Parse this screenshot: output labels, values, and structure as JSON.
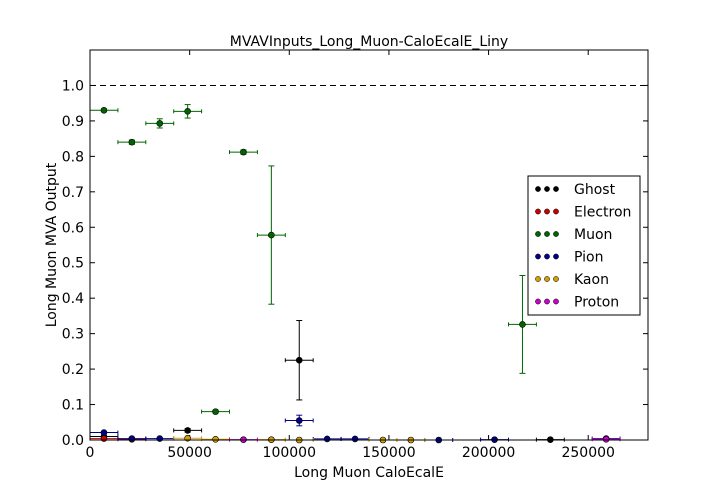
{
  "chart_data": {
    "type": "scatter",
    "title": "MVAVInputs_Long_Muon-CaloEcalE_Liny",
    "xlabel": "Long Muon CaloEcalE",
    "ylabel": "Long Muon MVA Output",
    "xlim": [
      0,
      280000
    ],
    "ylim": [
      0,
      1.1
    ],
    "x_ticks": [
      0,
      50000,
      100000,
      150000,
      200000,
      250000
    ],
    "x_tick_labels": [
      "0",
      "50000",
      "100000",
      "150000",
      "200000",
      "250000"
    ],
    "y_ticks": [
      0.0,
      0.1,
      0.2,
      0.3,
      0.4,
      0.5,
      0.6,
      0.7,
      0.8,
      0.9,
      1.0
    ],
    "y_tick_labels": [
      "0.0",
      "0.1",
      "0.2",
      "0.3",
      "0.4",
      "0.5",
      "0.6",
      "0.7",
      "0.8",
      "0.9",
      "1.0"
    ],
    "reference_line": 1.0,
    "grid": false,
    "legend_position": "right",
    "bin_half_width": 7000,
    "series": [
      {
        "name": "Ghost",
        "color": "#000000",
        "points": [
          {
            "x": 7000,
            "y": 0.01,
            "err": 0.002
          },
          {
            "x": 49000,
            "y": 0.027,
            "err": 0.005
          },
          {
            "x": 105000,
            "y": 0.225,
            "err": 0.112
          },
          {
            "x": 231000,
            "y": 0.001,
            "err": 0.001
          }
        ]
      },
      {
        "name": "Electron",
        "color": "#cc0000",
        "points": [
          {
            "x": 7000,
            "y": 0.004,
            "err": 0.001
          },
          {
            "x": 21000,
            "y": 0.002,
            "err": 0.001
          }
        ]
      },
      {
        "name": "Muon",
        "color": "#006400",
        "points": [
          {
            "x": 7000,
            "y": 0.93,
            "err": 0.004
          },
          {
            "x": 21000,
            "y": 0.84,
            "err": 0.006
          },
          {
            "x": 35000,
            "y": 0.893,
            "err": 0.013
          },
          {
            "x": 49000,
            "y": 0.927,
            "err": 0.019
          },
          {
            "x": 63000,
            "y": 0.08,
            "err": 0.004
          },
          {
            "x": 77000,
            "y": 0.812,
            "err": 0.006
          },
          {
            "x": 91000,
            "y": 0.578,
            "err": 0.195
          },
          {
            "x": 217000,
            "y": 0.326,
            "err": 0.138
          }
        ]
      },
      {
        "name": "Pion",
        "color": "#00008b",
        "points": [
          {
            "x": 7000,
            "y": 0.021,
            "err": 0.002
          },
          {
            "x": 21000,
            "y": 0.004,
            "err": 0.001
          },
          {
            "x": 35000,
            "y": 0.004,
            "err": 0.001
          },
          {
            "x": 105000,
            "y": 0.055,
            "err": 0.015
          },
          {
            "x": 119000,
            "y": 0.003,
            "err": 0.001
          },
          {
            "x": 133000,
            "y": 0.003,
            "err": 0.001
          },
          {
            "x": 175000,
            "y": 0.0,
            "err": 0.001
          },
          {
            "x": 203000,
            "y": 0.001,
            "err": 0.001
          },
          {
            "x": 259000,
            "y": 0.004,
            "err": 0.001
          }
        ]
      },
      {
        "name": "Kaon",
        "color": "#d4a000",
        "points": [
          {
            "x": 49000,
            "y": 0.005,
            "err": 0.002
          },
          {
            "x": 63000,
            "y": 0.002,
            "err": 0.001
          },
          {
            "x": 91000,
            "y": 0.001,
            "err": 0.001
          },
          {
            "x": 105000,
            "y": 0.0,
            "err": 0.001
          },
          {
            "x": 147000,
            "y": 0.0,
            "err": 0.001
          },
          {
            "x": 161000,
            "y": 0.0,
            "err": 0.001
          }
        ]
      },
      {
        "name": "Proton",
        "color": "#cc00cc",
        "points": [
          {
            "x": 77000,
            "y": 0.001,
            "err": 0.001
          },
          {
            "x": 259000,
            "y": 0.002,
            "err": 0.001
          }
        ]
      }
    ]
  }
}
